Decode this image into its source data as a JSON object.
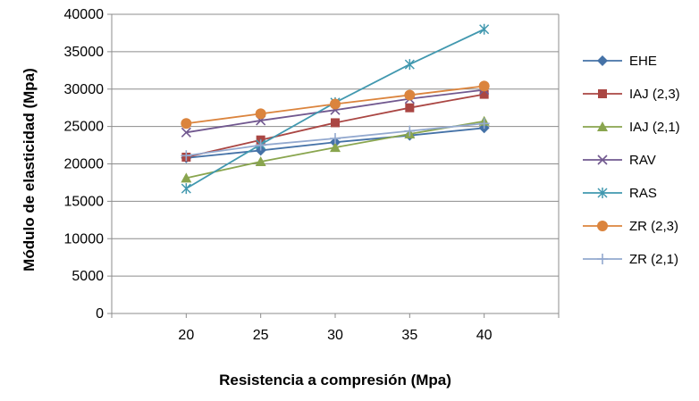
{
  "chart_data": {
    "type": "line",
    "title": "",
    "xlabel": "Resistencia a compresión (Mpa)",
    "ylabel": "Módulo de elasticidad (Mpa)",
    "x": [
      20,
      25,
      30,
      35,
      40
    ],
    "x_ticks": [
      "20",
      "25",
      "30",
      "35",
      "40"
    ],
    "xlim": [
      15,
      45
    ],
    "ylim": [
      0,
      40000
    ],
    "y_ticks": [
      "0",
      "5000",
      "10000",
      "15000",
      "20000",
      "25000",
      "30000",
      "35000",
      "40000"
    ],
    "grid": "horizontal",
    "legend_position": "right",
    "series": [
      {
        "name": "EHE",
        "marker": "diamond",
        "color": "#4572A7",
        "values": [
          20800,
          21800,
          22900,
          23800,
          24800
        ]
      },
      {
        "name": "IAJ (2,3)",
        "marker": "square",
        "color": "#AA4643",
        "values": [
          20900,
          23200,
          25500,
          27500,
          29300
        ]
      },
      {
        "name": "IAJ (2,1)",
        "marker": "triangle",
        "color": "#89A54E",
        "values": [
          18100,
          20300,
          22200,
          24000,
          25700
        ]
      },
      {
        "name": "RAV",
        "marker": "x",
        "color": "#71588F",
        "values": [
          24200,
          25800,
          27200,
          28700,
          29900
        ]
      },
      {
        "name": "RAS",
        "marker": "star",
        "color": "#4198AF",
        "values": [
          16700,
          22600,
          28200,
          33300,
          38000
        ]
      },
      {
        "name": "ZR (2,3)",
        "marker": "circle",
        "color": "#DB843D",
        "values": [
          25400,
          26700,
          28000,
          29200,
          30400
        ]
      },
      {
        "name": "ZR (2,1)",
        "marker": "plus",
        "color": "#93A9CF",
        "values": [
          21100,
          22500,
          23400,
          24400,
          25400
        ]
      }
    ]
  }
}
